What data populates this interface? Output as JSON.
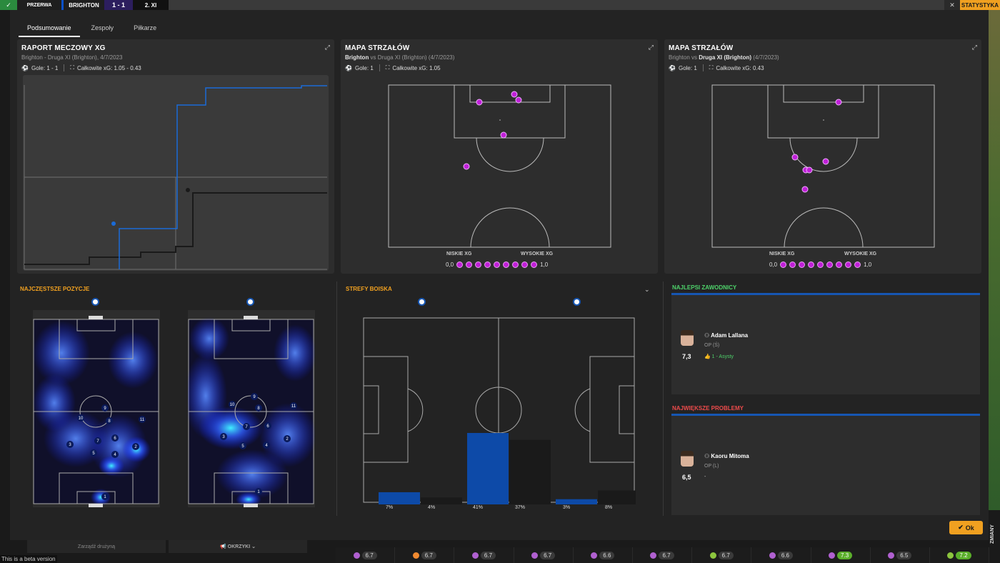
{
  "scorebar": {
    "status": "PRZERWA",
    "home": "BRIGHTON",
    "score": "1 - 1",
    "away": "2. XI",
    "statistics_btn": "STATYSTYKA",
    "close": "✕"
  },
  "tabs": [
    {
      "label": "Podsumowanie"
    },
    {
      "label": "Zespoły"
    },
    {
      "label": "Piłkarze"
    }
  ],
  "xg_report": {
    "title": "RAPORT MECZOWY XG",
    "subtitle": "Brighton - Druga XI (Brighton), 4/7/2023",
    "goals": "Gole: 1 - 1",
    "xg": "Całkowite xG: 1.05 - 0.43"
  },
  "shotmap_home": {
    "title": "MAPA STRZAŁÓW",
    "team_bold": "Brighton",
    "vs_rest": " vs Druga XI (Brighton) (4/7/2023)",
    "goals": "Gole: 1",
    "xg": "Całkowite xG: 1.05"
  },
  "shotmap_away": {
    "title": "MAPA STRZAŁÓW",
    "team_pre": "Brighton vs ",
    "team_bold": "Druga XI (Brighton)",
    "date": " (4/7/2023)",
    "goals": "Gole: 1",
    "xg": "Całkowite xG: 0.43"
  },
  "xg_legend": {
    "low": "NISKIE XG",
    "high": "WYSOKIE XG",
    "min": "0,0",
    "max": "1,0"
  },
  "positions": {
    "title": "NAJCZĘSTSZE POZYCJE"
  },
  "zones": {
    "title": "STREFY BOISKA",
    "values": [
      "7%",
      "4%",
      "41%",
      "37%",
      "3%",
      "8%"
    ],
    "bar_values": [
      7,
      4,
      41,
      37,
      3,
      8
    ]
  },
  "best": {
    "title": "NAJLEPSI ZAWODNICY",
    "player": "Adam Lallana",
    "position": "OP (Ś)",
    "rating": "7,3",
    "note": "1 - Asysty"
  },
  "problems": {
    "title": "NAJWIĘKSZE PROBLEMY",
    "player": "Kaoru Mitoma",
    "position": "OP (L)",
    "rating": "6,5",
    "note": "-"
  },
  "ok_label": "Ok",
  "zmiany": "ZMIANY",
  "beta": "This is a beta version",
  "bottom_left": [
    "Zarządź drużyną",
    "OKRZYKI"
  ],
  "ratings": [
    "6.7",
    "6.7",
    "6.7",
    "6.7",
    "6.6",
    "6.7",
    "6.7",
    "6.6",
    "7.3",
    "6.5",
    "7.2"
  ],
  "colors": {
    "accent": "#f0a020",
    "home_blue": "#1656b3",
    "shot_purple": "#c020d8"
  }
}
